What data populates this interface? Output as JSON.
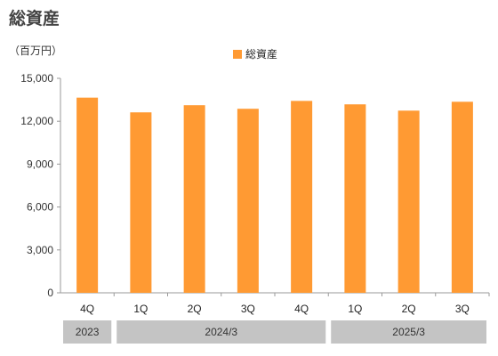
{
  "page": {
    "title": "総資産",
    "unit_label": "（百万円）"
  },
  "chart_data": {
    "type": "bar",
    "title": "総資産",
    "unit": "（百万円）",
    "categories": [
      "4Q",
      "1Q",
      "2Q",
      "3Q",
      "4Q",
      "1Q",
      "2Q",
      "3Q"
    ],
    "groups": [
      {
        "label": "2023",
        "start": 0,
        "count": 1
      },
      {
        "label": "2024/3",
        "start": 1,
        "count": 4
      },
      {
        "label": "2025/3",
        "start": 5,
        "count": 3
      }
    ],
    "series": [
      {
        "name": "総資産",
        "color": "#FF9A33",
        "values": [
          13650,
          12620,
          13120,
          12870,
          13420,
          13180,
          12740,
          13360
        ]
      }
    ],
    "ylim": [
      0,
      15000
    ],
    "yticks": [
      0,
      3000,
      6000,
      9000,
      12000,
      15000
    ],
    "ytick_labels": [
      "0",
      "3,000",
      "6,000",
      "9,000",
      "12,000",
      "15,000"
    ],
    "grid": false,
    "legend_position": "top-center"
  }
}
